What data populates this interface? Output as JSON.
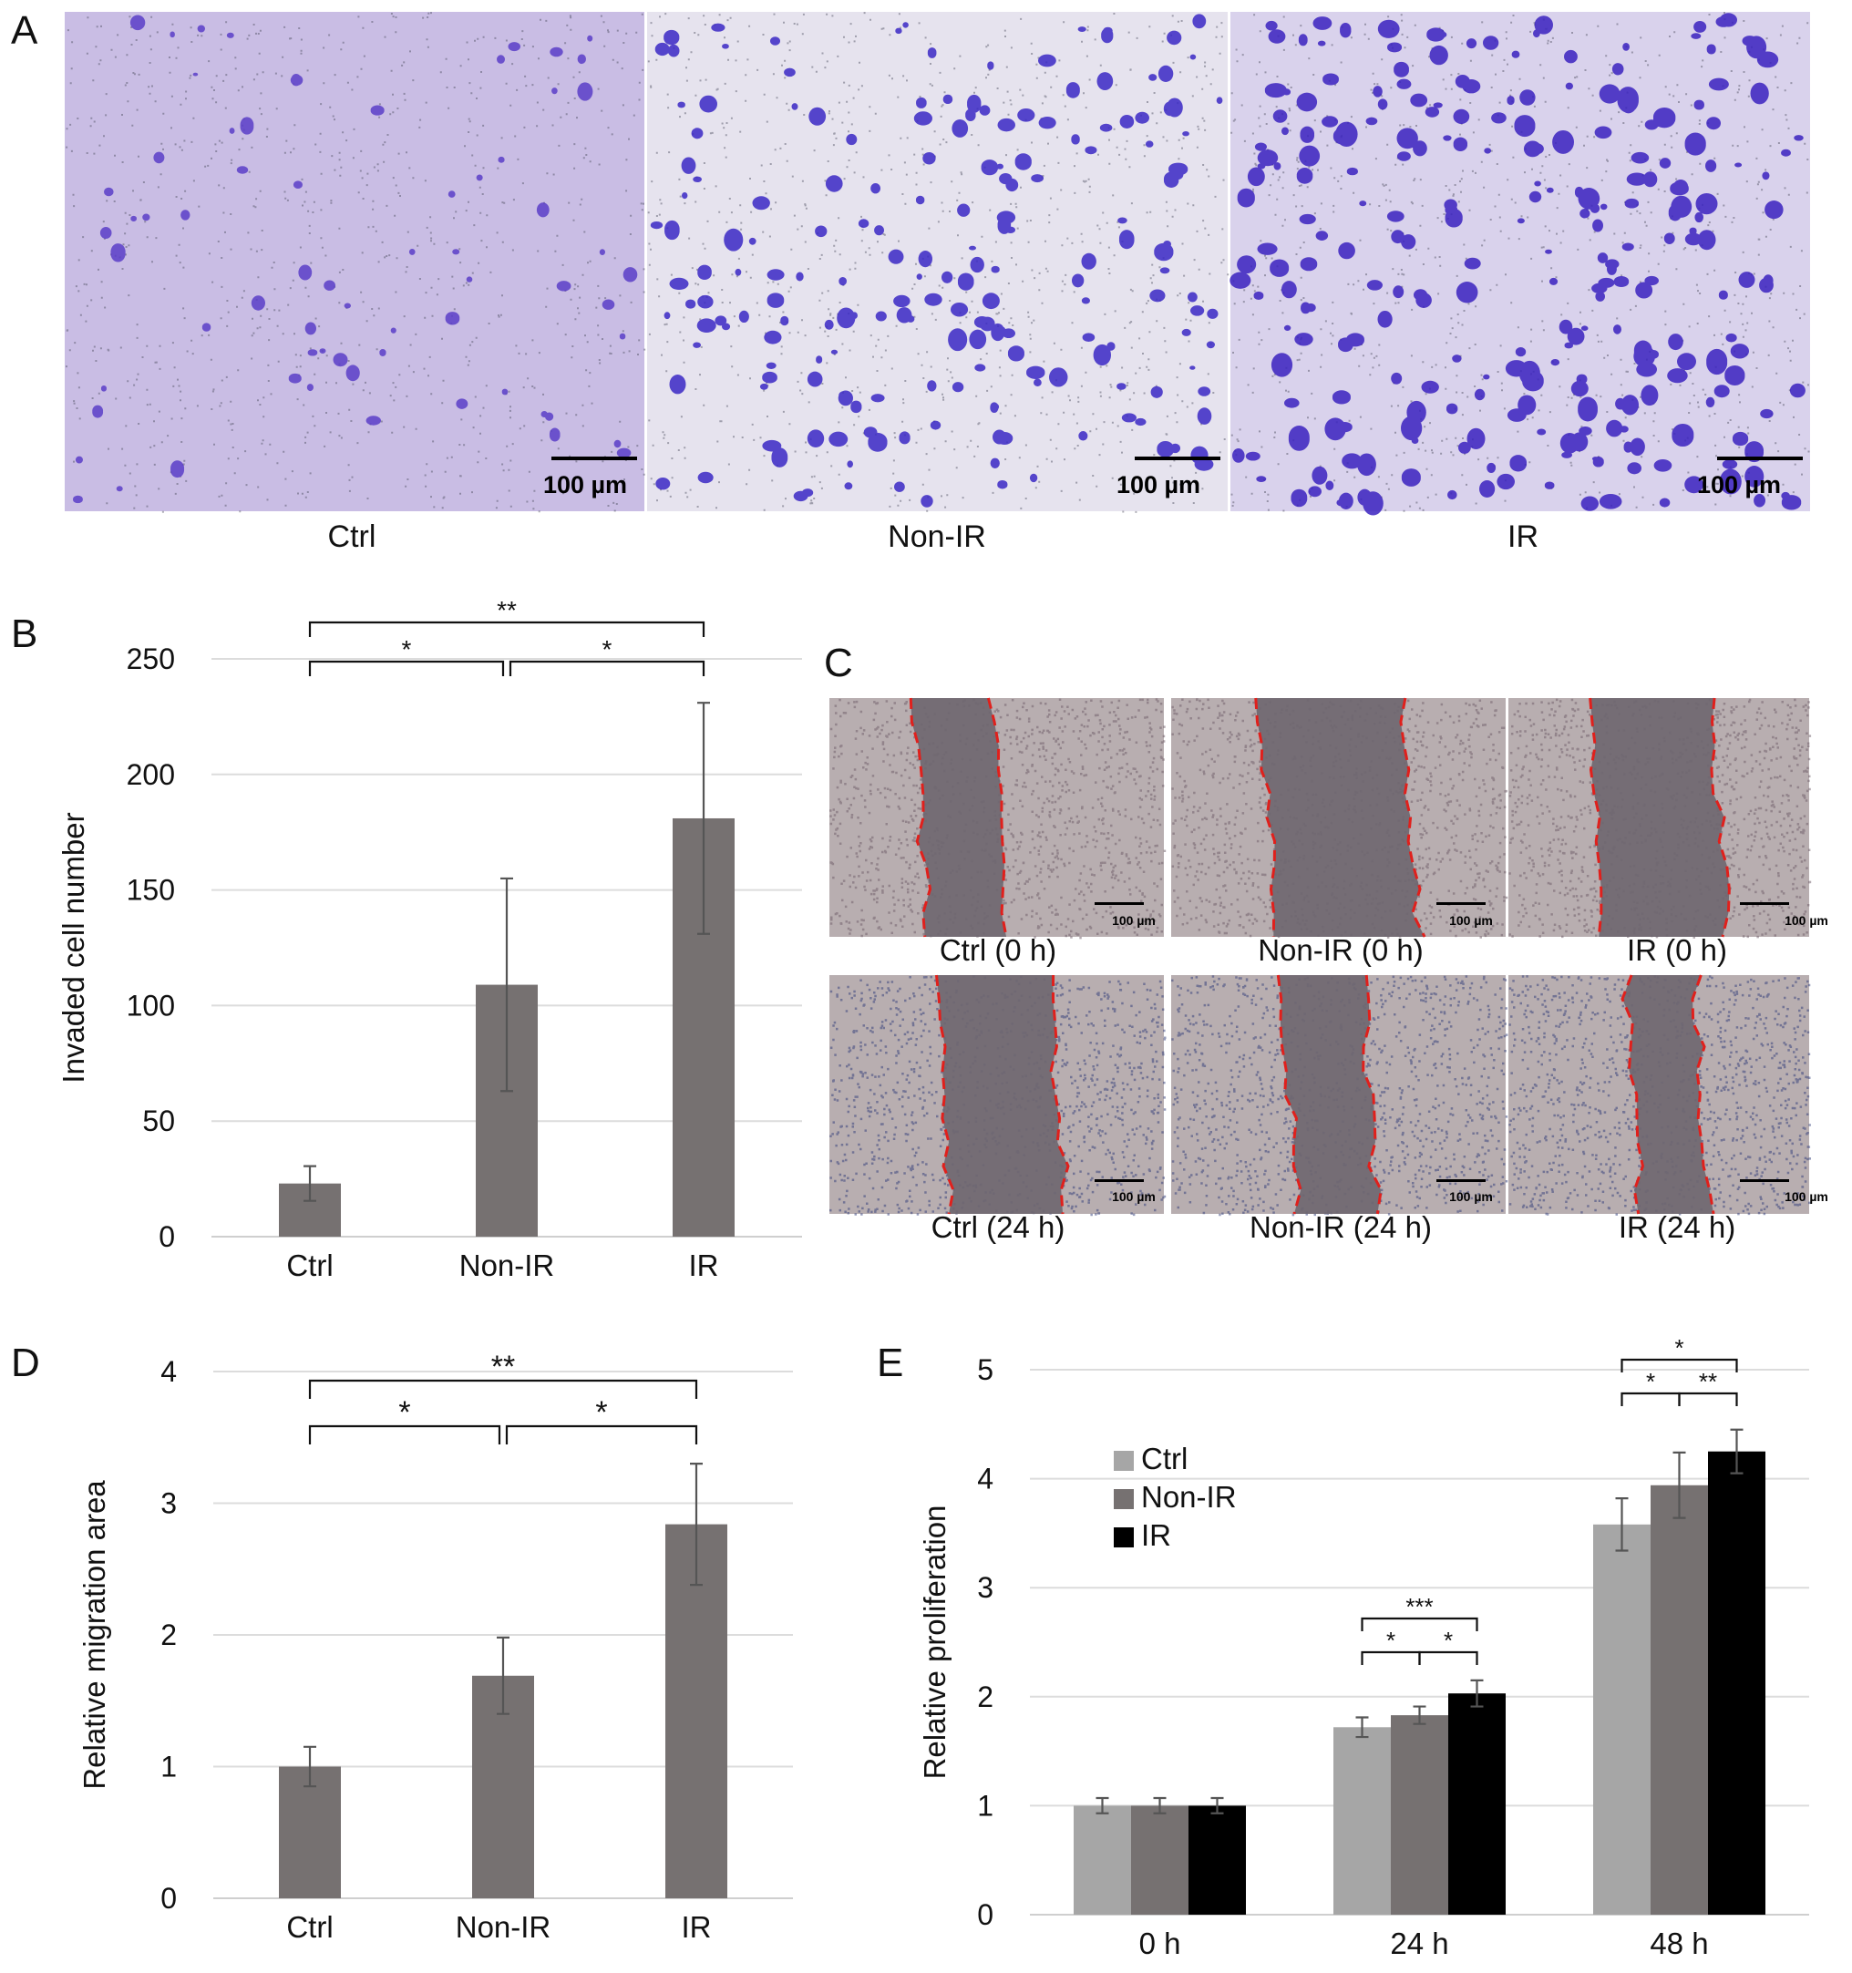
{
  "panels": {
    "a": {
      "letter": "A",
      "images": [
        {
          "caption": "Ctrl",
          "scale_bar": "100 µm",
          "bg": "#c9bde4",
          "dot": "#5a3ec8",
          "density": 70,
          "size": 1.0
        },
        {
          "caption": "Non-IR",
          "scale_bar": "100 µm",
          "bg": "#e6e3ee",
          "dot": "#3a28c4",
          "density": 190,
          "size": 1.25
        },
        {
          "caption": "IR",
          "scale_bar": "100 µm",
          "bg": "#d9d2ec",
          "dot": "#3a22c0",
          "density": 260,
          "size": 1.45
        }
      ]
    },
    "c": {
      "letter": "C",
      "images": [
        {
          "caption": "Ctrl (0 h)",
          "scale_bar": "100 µm"
        },
        {
          "caption": "Non-IR (0 h)",
          "scale_bar": "100 µm"
        },
        {
          "caption": "IR (0 h)",
          "scale_bar": "100 µm"
        },
        {
          "caption": "Ctrl (24 h)",
          "scale_bar": "100 µm"
        },
        {
          "caption": "Non-IR (24 h)",
          "scale_bar": "100 µm"
        },
        {
          "caption": "IR (24 h)",
          "scale_bar": "100 µm"
        }
      ],
      "colors": {
        "field": "#b8aeb0",
        "gap": "#6f6770",
        "edge": "#e0201c"
      }
    }
  },
  "chart_data": [
    {
      "id": "b",
      "letter": "B",
      "type": "bar",
      "categories": [
        "Ctrl",
        "Non-IR",
        "IR"
      ],
      "values": [
        23,
        109,
        181
      ],
      "errors": [
        7.5,
        46,
        50
      ],
      "ylabel": "Invaded cell number",
      "ylim": [
        0,
        250
      ],
      "yticks": [
        0,
        50,
        100,
        150,
        200,
        250
      ],
      "grid": true,
      "bar_color": "#767171",
      "significance": [
        {
          "from": 0,
          "to": 1,
          "label": "*"
        },
        {
          "from": 1,
          "to": 2,
          "label": "*"
        },
        {
          "from": 0,
          "to": 2,
          "label": "**"
        }
      ]
    },
    {
      "id": "d",
      "letter": "D",
      "type": "bar",
      "categories": [
        "Ctrl",
        "Non-IR",
        "IR"
      ],
      "values": [
        1.0,
        1.69,
        2.84
      ],
      "errors": [
        0.15,
        0.29,
        0.46
      ],
      "ylabel": "Relative migration area",
      "ylim": [
        0,
        4
      ],
      "yticks": [
        0,
        1,
        2,
        3,
        4
      ],
      "grid": true,
      "bar_color": "#767171",
      "significance": [
        {
          "from": 0,
          "to": 1,
          "label": "*"
        },
        {
          "from": 1,
          "to": 2,
          "label": "*"
        },
        {
          "from": 0,
          "to": 2,
          "label": "**"
        }
      ]
    },
    {
      "id": "e",
      "letter": "E",
      "type": "bar",
      "categories": [
        "0 h",
        "24 h",
        "48 h"
      ],
      "series": [
        {
          "name": "Ctrl",
          "color": "#a6a6a6",
          "values": [
            1.0,
            1.72,
            3.58
          ],
          "errors": [
            0.07,
            0.09,
            0.24
          ]
        },
        {
          "name": "Non-IR",
          "color": "#767171",
          "values": [
            1.0,
            1.83,
            3.94
          ],
          "errors": [
            0.07,
            0.08,
            0.3
          ]
        },
        {
          "name": "IR",
          "color": "#000000",
          "values": [
            1.0,
            2.03,
            4.25
          ],
          "errors": [
            0.07,
            0.12,
            0.2
          ]
        }
      ],
      "ylabel": "Relative proliferation",
      "ylim": [
        0,
        5
      ],
      "yticks": [
        0,
        1,
        2,
        3,
        4,
        5
      ],
      "grid": true,
      "legend": "top-left",
      "significance": [
        {
          "group": 1,
          "from": 0,
          "to": 1,
          "label": "*"
        },
        {
          "group": 1,
          "from": 1,
          "to": 2,
          "label": "*"
        },
        {
          "group": 1,
          "from": 0,
          "to": 2,
          "label": "***"
        },
        {
          "group": 2,
          "from": 0,
          "to": 1,
          "label": "*"
        },
        {
          "group": 2,
          "from": 1,
          "to": 2,
          "label": "**"
        },
        {
          "group": 2,
          "from": 0,
          "to": 2,
          "label": "*"
        }
      ]
    }
  ]
}
